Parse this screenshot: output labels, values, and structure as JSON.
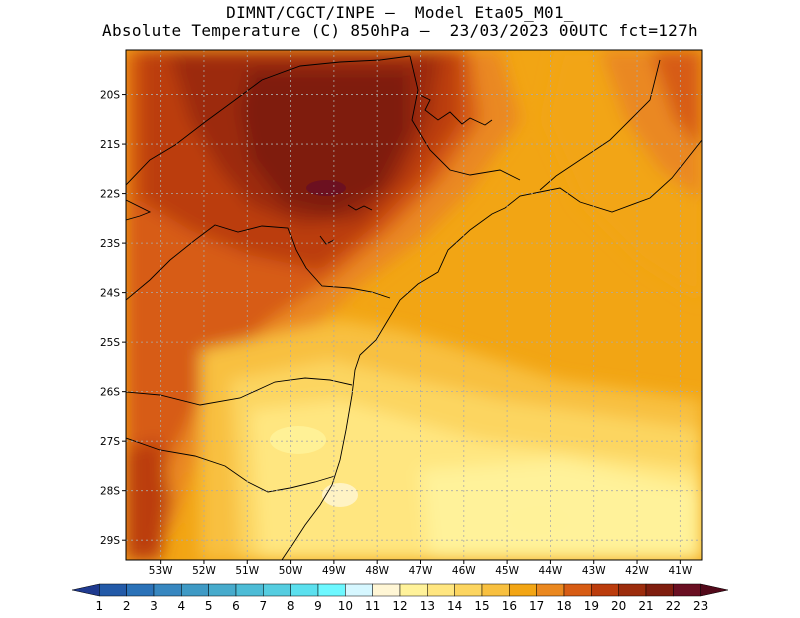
{
  "title": {
    "line1": "DIMNT/CGCT/INPE –  Model Eta05_M01_",
    "line2": "Absolute Temperature (C) 850hPa –  23/03/2023 00UTC fct=127h"
  },
  "map": {
    "lon_range": [
      -53.8,
      -40.5
    ],
    "lat_range": [
      -29.4,
      -19.1
    ],
    "lon_ticks": [
      "53W",
      "52W",
      "51W",
      "50W",
      "49W",
      "48W",
      "47W",
      "46W",
      "45W",
      "44W",
      "43W",
      "42W",
      "41W"
    ],
    "lat_ticks": [
      "20S",
      "21S",
      "22S",
      "23S",
      "24S",
      "25S",
      "26S",
      "27S",
      "28S",
      "29S"
    ]
  },
  "colorbar": {
    "labels": [
      "1",
      "2",
      "3",
      "4",
      "5",
      "6",
      "7",
      "8",
      "9",
      "10",
      "11",
      "12",
      "13",
      "14",
      "15",
      "16",
      "17",
      "18",
      "19",
      "20",
      "21",
      "22",
      "23"
    ],
    "colors": [
      "#1f3a8f",
      "#235aa8",
      "#2b72b8",
      "#3787c0",
      "#3f9ac5",
      "#47abcc",
      "#4dbcd6",
      "#55cde0",
      "#5be0ee",
      "#6df8ff",
      "#d6f7ff",
      "#fff6d5",
      "#fff29a",
      "#ffe680",
      "#fcd560",
      "#f8c040",
      "#f2a514",
      "#ea8820",
      "#d75c14",
      "#bb3c0c",
      "#9c2c0c",
      "#7f1d0e",
      "#6a0f22",
      "#52091a"
    ]
  }
}
